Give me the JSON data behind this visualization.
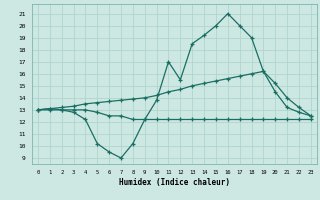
{
  "xlabel": "Humidex (Indice chaleur)",
  "x_ticks": [
    0,
    1,
    2,
    3,
    4,
    5,
    6,
    7,
    8,
    9,
    10,
    11,
    12,
    13,
    14,
    15,
    16,
    17,
    18,
    19,
    20,
    21,
    22,
    23
  ],
  "ylim": [
    8.5,
    21.8
  ],
  "xlim": [
    -0.5,
    23.5
  ],
  "yticks": [
    9,
    10,
    11,
    12,
    13,
    14,
    15,
    16,
    17,
    18,
    19,
    20,
    21
  ],
  "bg_color": "#cde8e2",
  "line_color": "#1a6e64",
  "grid_color": "#b0d4cc",
  "line1_x": [
    0,
    1,
    2,
    3,
    4,
    5,
    6,
    7,
    8,
    9,
    10,
    11,
    12,
    13,
    14,
    15,
    16,
    17,
    18,
    19,
    20,
    21,
    22,
    23
  ],
  "line1_y": [
    13.0,
    13.1,
    13.0,
    12.8,
    12.2,
    10.2,
    9.5,
    9.0,
    10.2,
    12.2,
    13.8,
    17.0,
    15.5,
    18.5,
    19.2,
    20.0,
    21.0,
    20.0,
    19.0,
    16.2,
    14.5,
    13.2,
    12.8,
    12.5
  ],
  "line2_x": [
    0,
    1,
    2,
    3,
    4,
    5,
    6,
    7,
    8,
    9,
    10,
    11,
    12,
    13,
    14,
    15,
    16,
    17,
    18,
    19,
    20,
    21,
    22,
    23
  ],
  "line2_y": [
    13.0,
    13.1,
    13.2,
    13.3,
    13.5,
    13.6,
    13.7,
    13.8,
    13.9,
    14.0,
    14.2,
    14.5,
    14.7,
    15.0,
    15.2,
    15.4,
    15.6,
    15.8,
    16.0,
    16.2,
    15.2,
    14.0,
    13.2,
    12.5
  ],
  "line3_x": [
    0,
    1,
    2,
    3,
    4,
    5,
    6,
    7,
    8,
    9,
    10,
    11,
    12,
    13,
    14,
    15,
    16,
    17,
    18,
    19,
    20,
    21,
    22,
    23
  ],
  "line3_y": [
    13.0,
    13.0,
    13.0,
    13.0,
    13.0,
    12.8,
    12.5,
    12.5,
    12.2,
    12.2,
    12.2,
    12.2,
    12.2,
    12.2,
    12.2,
    12.2,
    12.2,
    12.2,
    12.2,
    12.2,
    12.2,
    12.2,
    12.2,
    12.2
  ]
}
